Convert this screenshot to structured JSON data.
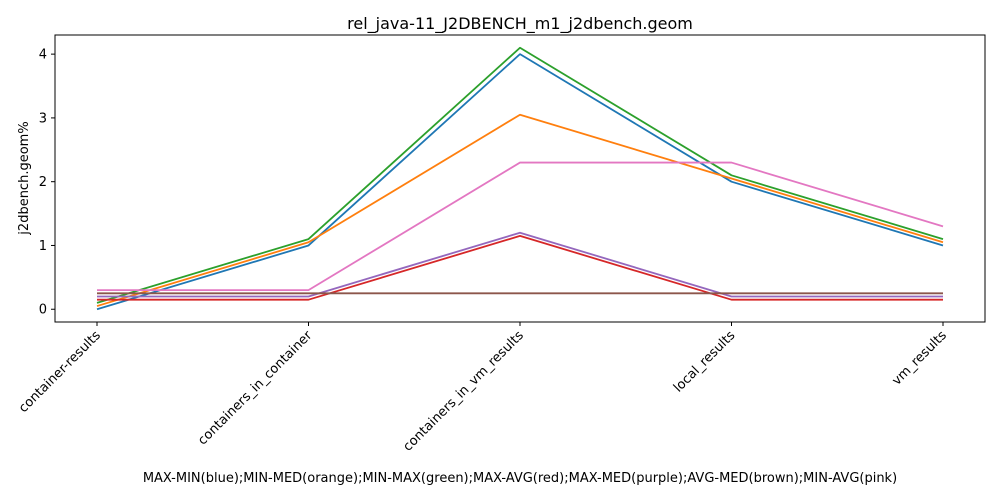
{
  "chart_data": {
    "type": "line",
    "title": "rel_java-11_J2DBENCH_m1_j2dbench.geom",
    "xlabel": "MAX-MIN(blue);MIN-MED(orange);MIN-MAX(green);MAX-AVG(red);MAX-MED(purple);AVG-MED(brown);MIN-AVG(pink)",
    "ylabel": "j2dbench.geom%",
    "categories": [
      "container-results",
      "containers_in_container",
      "containers_in_vm_results",
      "local_results",
      "vm_results"
    ],
    "ylim": [
      -0.2,
      4.3
    ],
    "yticks": [
      0,
      1,
      2,
      3,
      4
    ],
    "grid": false,
    "legend": "none",
    "series": [
      {
        "color": "#1f77b4",
        "values": [
          0.0,
          1.0,
          4.0,
          2.0,
          1.0
        ]
      },
      {
        "color": "#ff7f0e",
        "values": [
          0.05,
          1.05,
          3.05,
          2.05,
          1.05
        ]
      },
      {
        "color": "#2ca02c",
        "values": [
          0.1,
          1.1,
          4.1,
          2.1,
          1.1
        ]
      },
      {
        "color": "#d62728",
        "values": [
          0.15,
          0.15,
          1.15,
          0.15,
          0.15
        ]
      },
      {
        "color": "#9467bd",
        "values": [
          0.2,
          0.2,
          1.2,
          0.2,
          0.2
        ]
      },
      {
        "color": "#8c564b",
        "values": [
          0.25,
          0.25,
          0.25,
          0.25,
          0.25
        ]
      },
      {
        "color": "#e377c2",
        "values": [
          0.3,
          0.3,
          2.3,
          2.3,
          1.3
        ]
      }
    ]
  }
}
